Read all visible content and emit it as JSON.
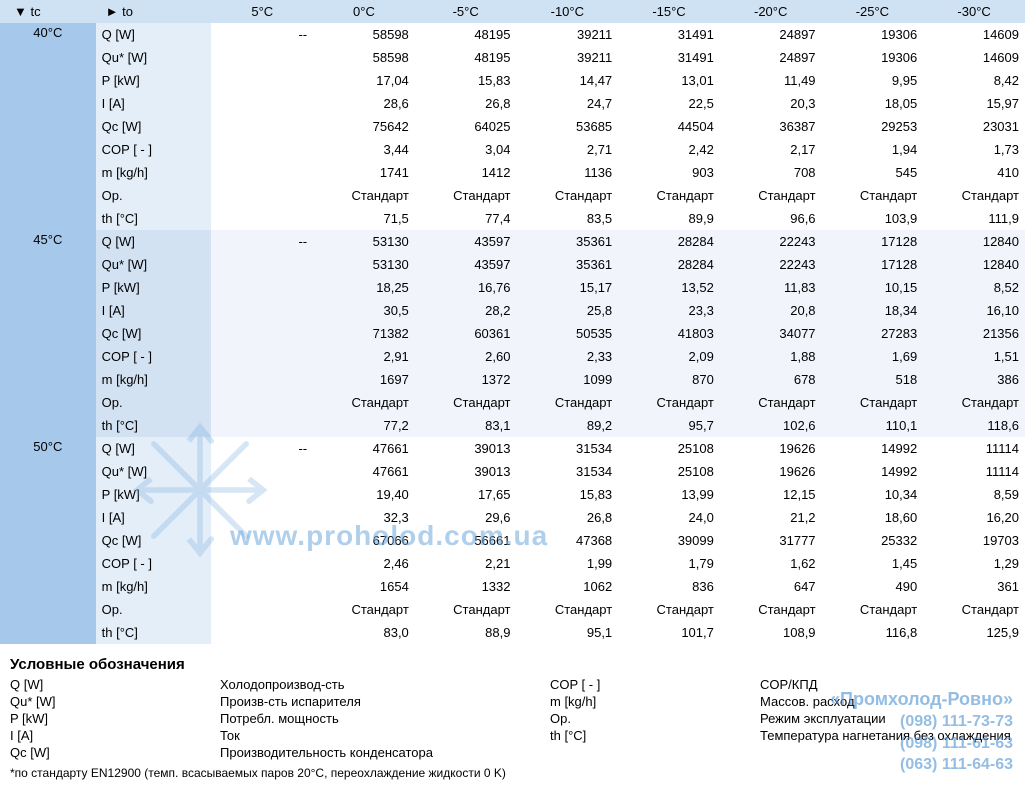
{
  "table": {
    "header": {
      "tc_label": "▼ tc",
      "to_label": "► to",
      "to_values": [
        "5°C",
        "0°C",
        "-5°C",
        "-10°C",
        "-15°C",
        "-20°C",
        "-25°C",
        "-30°C"
      ]
    },
    "params": [
      "Q [W]",
      "Qu* [W]",
      "P [kW]",
      "I [A]",
      "Qc [W]",
      "COP [ - ]",
      "m [kg/h]",
      "Op.",
      "th [°C]"
    ],
    "groups": [
      {
        "tc": "40°C",
        "rows": [
          [
            "--",
            "58598",
            "48195",
            "39211",
            "31491",
            "24897",
            "19306",
            "14609"
          ],
          [
            "",
            "58598",
            "48195",
            "39211",
            "31491",
            "24897",
            "19306",
            "14609"
          ],
          [
            "",
            "17,04",
            "15,83",
            "14,47",
            "13,01",
            "11,49",
            "9,95",
            "8,42"
          ],
          [
            "",
            "28,6",
            "26,8",
            "24,7",
            "22,5",
            "20,3",
            "18,05",
            "15,97"
          ],
          [
            "",
            "75642",
            "64025",
            "53685",
            "44504",
            "36387",
            "29253",
            "23031"
          ],
          [
            "",
            "3,44",
            "3,04",
            "2,71",
            "2,42",
            "2,17",
            "1,94",
            "1,73"
          ],
          [
            "",
            "1741",
            "1412",
            "1136",
            "903",
            "708",
            "545",
            "410"
          ],
          [
            "",
            "Стандарт",
            "Стандарт",
            "Стандарт",
            "Стандарт",
            "Стандарт",
            "Стандарт",
            "Стандарт"
          ],
          [
            "",
            "71,5",
            "77,4",
            "83,5",
            "89,9",
            "96,6",
            "103,9",
            "111,9"
          ]
        ]
      },
      {
        "tc": "45°C",
        "rows": [
          [
            "--",
            "53130",
            "43597",
            "35361",
            "28284",
            "22243",
            "17128",
            "12840"
          ],
          [
            "",
            "53130",
            "43597",
            "35361",
            "28284",
            "22243",
            "17128",
            "12840"
          ],
          [
            "",
            "18,25",
            "16,76",
            "15,17",
            "13,52",
            "11,83",
            "10,15",
            "8,52"
          ],
          [
            "",
            "30,5",
            "28,2",
            "25,8",
            "23,3",
            "20,8",
            "18,34",
            "16,10"
          ],
          [
            "",
            "71382",
            "60361",
            "50535",
            "41803",
            "34077",
            "27283",
            "21356"
          ],
          [
            "",
            "2,91",
            "2,60",
            "2,33",
            "2,09",
            "1,88",
            "1,69",
            "1,51"
          ],
          [
            "",
            "1697",
            "1372",
            "1099",
            "870",
            "678",
            "518",
            "386"
          ],
          [
            "",
            "Стандарт",
            "Стандарт",
            "Стандарт",
            "Стандарт",
            "Стандарт",
            "Стандарт",
            "Стандарт"
          ],
          [
            "",
            "77,2",
            "83,1",
            "89,2",
            "95,7",
            "102,6",
            "110,1",
            "118,6"
          ]
        ]
      },
      {
        "tc": "50°C",
        "rows": [
          [
            "--",
            "47661",
            "39013",
            "31534",
            "25108",
            "19626",
            "14992",
            "11114"
          ],
          [
            "",
            "47661",
            "39013",
            "31534",
            "25108",
            "19626",
            "14992",
            "11114"
          ],
          [
            "",
            "19,40",
            "17,65",
            "15,83",
            "13,99",
            "12,15",
            "10,34",
            "8,59"
          ],
          [
            "",
            "32,3",
            "29,6",
            "26,8",
            "24,0",
            "21,2",
            "18,60",
            "16,20"
          ],
          [
            "",
            "67066",
            "56661",
            "47368",
            "39099",
            "31777",
            "25332",
            "19703"
          ],
          [
            "",
            "2,46",
            "2,21",
            "1,99",
            "1,79",
            "1,62",
            "1,45",
            "1,29"
          ],
          [
            "",
            "1654",
            "1332",
            "1062",
            "836",
            "647",
            "490",
            "361"
          ],
          [
            "",
            "Стандарт",
            "Стандарт",
            "Стандарт",
            "Стандарт",
            "Стандарт",
            "Стандарт",
            "Стандарт"
          ],
          [
            "",
            "83,0",
            "88,9",
            "95,1",
            "101,7",
            "108,9",
            "116,8",
            "125,9"
          ]
        ]
      }
    ],
    "colors": {
      "header_bg": "#cfe2f3",
      "tc_bg": "#a6c8eb",
      "param_bg": "#e4eef8",
      "param_bg_alt": "#d3e2f2",
      "row_alt_bg": "#f1f5fb"
    }
  },
  "legend": {
    "title": "Условные обозначения",
    "items": [
      {
        "sym": "Q [W]",
        "desc": "Холодопроизвод-сть"
      },
      {
        "sym": "Qu* [W]",
        "desc": "Произв-сть испарителя"
      },
      {
        "sym": "P [kW]",
        "desc": "Потребл. мощность"
      },
      {
        "sym": "I [A]",
        "desc": "Ток"
      },
      {
        "sym": "Qc [W]",
        "desc": "Производительность конденсатора"
      },
      {
        "sym": "COP [ - ]",
        "desc": "COP/КПД"
      },
      {
        "sym": "m [kg/h]",
        "desc": "Массов. расход"
      },
      {
        "sym": "Op.",
        "desc": "Режим эксплуатации"
      },
      {
        "sym": "th [°C]",
        "desc": "Температура нагнетания без охлаждения"
      }
    ],
    "footnote": "*по стандарту EN12900 (темп. всасываемых паров 20°C, переохлаждение жидкости 0 K)"
  },
  "watermark": {
    "url_text": "www.proholod.com.ua",
    "company": "«Промхолод-Ровно»",
    "phones": [
      "(098) 111-73-73",
      "(098) 111-61-63",
      "(063) 111-64-63"
    ]
  }
}
